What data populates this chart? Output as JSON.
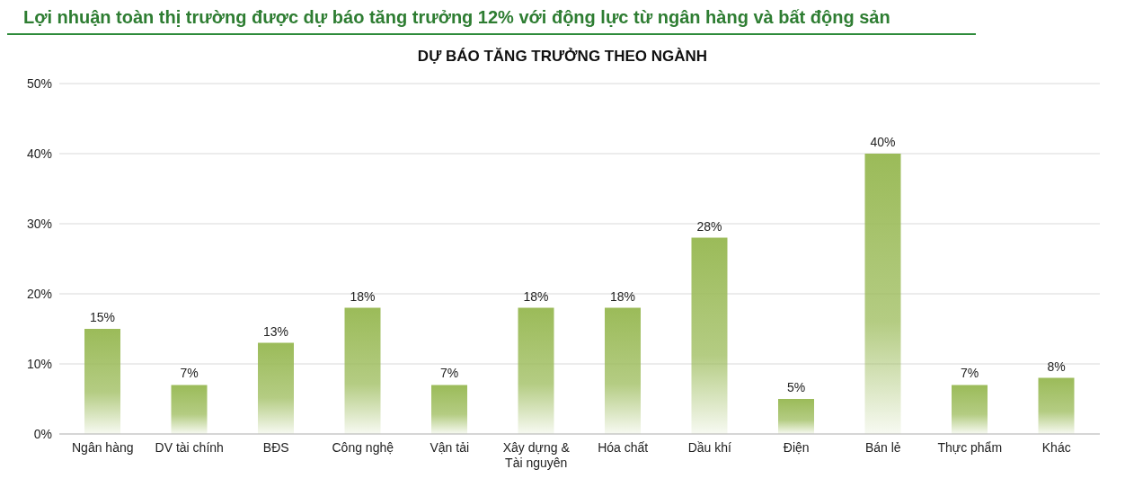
{
  "chart_data": {
    "type": "bar",
    "title": "Lợi nhuận toàn thị trường được dự báo tăng trưởng 12% với động lực từ ngân hàng và bất động sản",
    "subtitle": "DỰ BÁO TĂNG TRƯỞNG THEO NGÀNH",
    "categories": [
      "Ngân hàng",
      "DV tài chính",
      "BĐS",
      "Công nghệ",
      "Vận tải",
      "Xây dựng & Tài nguyên",
      "Hóa chất",
      "Dầu khí",
      "Điện",
      "Bán lẻ",
      "Thực phẩm",
      "Khác"
    ],
    "values": [
      15,
      7,
      13,
      18,
      7,
      18,
      18,
      28,
      5,
      40,
      7,
      8
    ],
    "value_labels": [
      "15%",
      "7%",
      "13%",
      "18%",
      "7%",
      "18%",
      "18%",
      "28%",
      "5%",
      "40%",
      "7%",
      "8%"
    ],
    "color": "#9bbb59",
    "ylim": [
      0,
      50
    ],
    "yticks": [
      {
        "value": 0,
        "label": "0%"
      },
      {
        "value": 10,
        "label": "10%"
      },
      {
        "value": 20,
        "label": "20%"
      },
      {
        "value": 30,
        "label": "30%"
      },
      {
        "value": 40,
        "label": "40%"
      },
      {
        "value": 50,
        "label": "50%"
      }
    ],
    "grid": "y"
  }
}
